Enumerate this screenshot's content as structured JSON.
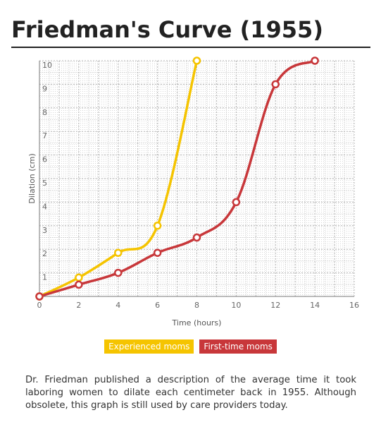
{
  "page": {
    "title": "Friedman's Curve (1955)",
    "caption": "Dr. Friedman published a description of the average time it took laboring women to dilate each centimeter back in 1955. Although obsolete, this graph is still used by care providers today."
  },
  "chart_data": {
    "type": "line",
    "title": "Friedman's Curve (1955)",
    "xlabel": "Time (hours)",
    "ylabel": "Dilation (cm)",
    "xlim": [
      0,
      16
    ],
    "ylim": [
      0,
      10
    ],
    "xticks": [
      0,
      2,
      4,
      6,
      8,
      10,
      12,
      14,
      16
    ],
    "yticks": [
      1,
      2,
      3,
      4,
      5,
      6,
      7,
      8,
      9,
      10
    ],
    "grid": true,
    "legend_position": "bottom",
    "series": [
      {
        "name": "Experienced moms",
        "color": "#f5c400",
        "x": [
          0,
          2,
          4,
          6,
          8
        ],
        "y": [
          0,
          0.8,
          1.85,
          3,
          10
        ]
      },
      {
        "name": "First-time moms",
        "color": "#c8373a",
        "x": [
          0,
          2,
          4,
          6,
          8,
          10,
          12,
          14
        ],
        "y": [
          0,
          0.5,
          1,
          1.85,
          2.5,
          4,
          9,
          10
        ]
      }
    ]
  }
}
